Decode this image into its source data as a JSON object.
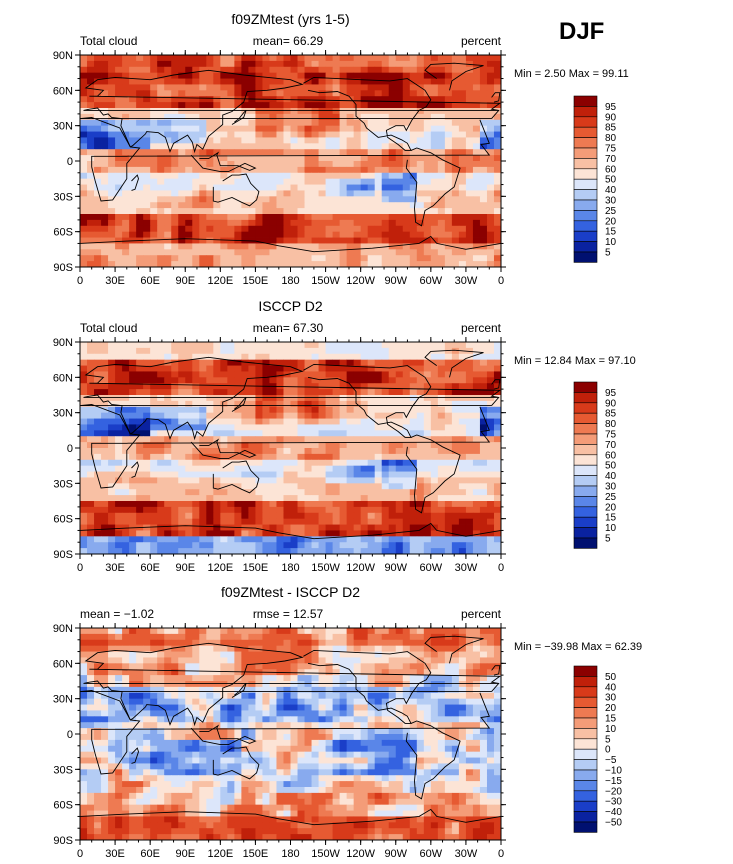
{
  "season": "DJF",
  "panels": [
    {
      "title": "f09ZMtest (yrs 1-5)",
      "left_label": "Total cloud",
      "center_label": "mean=  66.29",
      "right_label": "percent",
      "minmax": "Min =   2.50 Max =  99.11"
    },
    {
      "title": "ISCCP D2",
      "left_label": "Total cloud",
      "center_label": "mean=  67.30",
      "right_label": "percent",
      "minmax": "Min =  12.84 Max =  97.10"
    },
    {
      "title": "f09ZMtest - ISCCP D2",
      "left_label": "mean =  −1.02",
      "center_label": "rmse =  12.57",
      "right_label": "percent",
      "minmax": "Min = −39.98 Max =  62.39"
    }
  ],
  "lon_ticks": [
    "0",
    "30E",
    "60E",
    "90E",
    "120E",
    "150E",
    "180",
    "150W",
    "120W",
    "90W",
    "60W",
    "30W",
    "0"
  ],
  "lat_ticks": [
    "90N",
    "60N",
    "30N",
    "0",
    "30S",
    "60S",
    "90S"
  ],
  "colorbar_abs": {
    "labels": [
      "95",
      "90",
      "85",
      "80",
      "75",
      "70",
      "60",
      "50",
      "40",
      "30",
      "25",
      "20",
      "15",
      "10",
      "5"
    ],
    "colors": [
      "#8b0000",
      "#c0200a",
      "#d83a1a",
      "#e65a32",
      "#ee7a52",
      "#f49c78",
      "#f8c0a4",
      "#fce4d6",
      "#dce6fa",
      "#b4ccf4",
      "#88aaee",
      "#5a86e8",
      "#3462e0",
      "#1a3ec8",
      "#0a22a0",
      "#001070"
    ]
  },
  "colorbar_diff": {
    "labels": [
      "50",
      "40",
      "30",
      "20",
      "15",
      "10",
      "5",
      "0",
      "−5",
      "−10",
      "−15",
      "−20",
      "−30",
      "−40",
      "−50"
    ],
    "colors": [
      "#8b0000",
      "#c0200a",
      "#d83a1a",
      "#e65a32",
      "#ee7a52",
      "#f49c78",
      "#f8c0a4",
      "#fce4d6",
      "#dce6fa",
      "#b4ccf4",
      "#88aaee",
      "#5a86e8",
      "#3462e0",
      "#1a3ec8",
      "#0a22a0",
      "#001070"
    ]
  },
  "chart_data": [
    {
      "type": "heatmap",
      "title": "f09ZMtest (yrs 1-5)",
      "variable": "Total cloud",
      "units": "percent",
      "mean": 66.29,
      "min": 2.5,
      "max": 99.11,
      "xlim": [
        0,
        360
      ],
      "ylim": [
        -90,
        90
      ],
      "contour_levels": [
        5,
        10,
        15,
        20,
        25,
        30,
        40,
        50,
        60,
        70,
        75,
        80,
        85,
        90,
        95
      ]
    },
    {
      "type": "heatmap",
      "title": "ISCCP D2",
      "variable": "Total cloud",
      "units": "percent",
      "mean": 67.3,
      "min": 12.84,
      "max": 97.1,
      "xlim": [
        0,
        360
      ],
      "ylim": [
        -90,
        90
      ],
      "contour_levels": [
        5,
        10,
        15,
        20,
        25,
        30,
        40,
        50,
        60,
        70,
        75,
        80,
        85,
        90,
        95
      ]
    },
    {
      "type": "heatmap",
      "title": "f09ZMtest - ISCCP D2",
      "units": "percent",
      "mean": -1.02,
      "rmse": 12.57,
      "min": -39.98,
      "max": 62.39,
      "xlim": [
        0,
        360
      ],
      "ylim": [
        -90,
        90
      ],
      "contour_levels": [
        -50,
        -40,
        -30,
        -20,
        -15,
        -10,
        -5,
        0,
        5,
        10,
        15,
        20,
        30,
        40,
        50
      ]
    }
  ]
}
